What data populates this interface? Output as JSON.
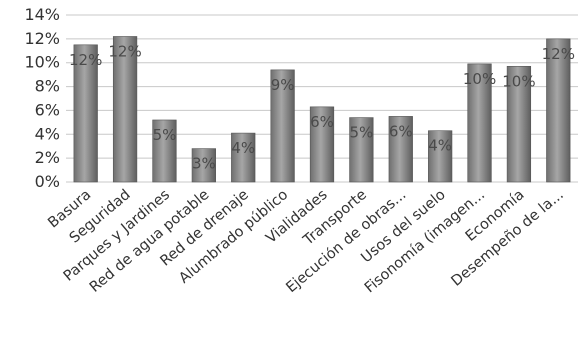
{
  "chart_data": {
    "type": "bar",
    "title": "",
    "xlabel": "",
    "ylabel": "",
    "ylim": [
      0,
      0.14
    ],
    "y_ticks": [
      "0%",
      "2%",
      "4%",
      "6%",
      "8%",
      "10%",
      "12%",
      "14%"
    ],
    "y_tick_values": [
      0,
      0.02,
      0.04,
      0.06,
      0.08,
      0.1,
      0.12,
      0.14
    ],
    "grid": true,
    "legend": "none",
    "bar_color": "#8c8c8c",
    "categories": [
      "Basura",
      "Seguridad",
      "Parques y Jardines",
      "Red de agua potable",
      "Red de drenaje",
      "Alumbrado público",
      "Vialidades",
      "Transporte",
      "Ejecución de obras...",
      "Usos del suelo",
      "Fisonomía (imagen...",
      "Economía",
      "Desempeño de la..."
    ],
    "values": [
      0.115,
      0.122,
      0.052,
      0.028,
      0.041,
      0.094,
      0.063,
      0.054,
      0.055,
      0.043,
      0.099,
      0.097,
      0.12
    ],
    "data_labels": [
      "12%",
      "12%",
      "5%",
      "3%",
      "4%",
      "9%",
      "6%",
      "5%",
      "6%",
      "4%",
      "10%",
      "10%",
      "12%"
    ]
  }
}
